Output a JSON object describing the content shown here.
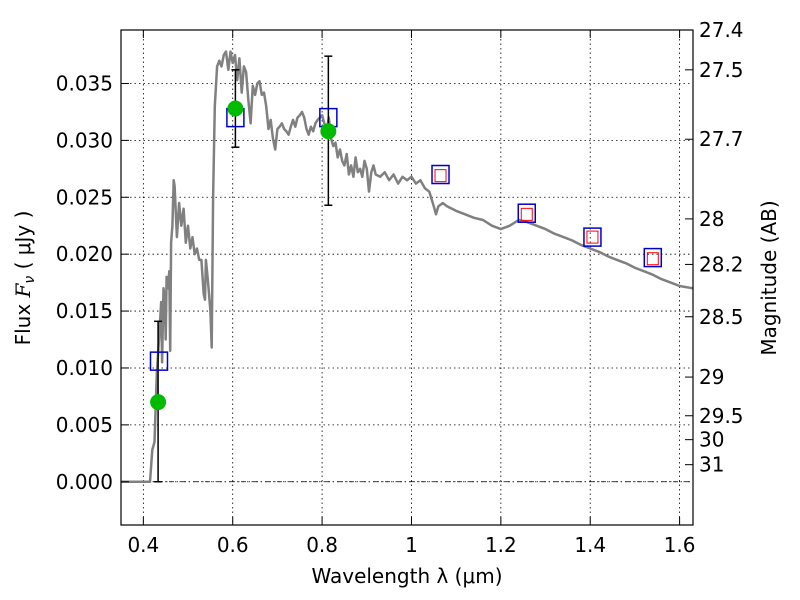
{
  "chart_data": {
    "type": "line",
    "xlabel": "Wavelength  λ (μm)",
    "ylabel": "Flux  F_ν  ( μJy )",
    "ylabel_parts": {
      "prefix": "Flux  ",
      "symbol": "F",
      "subscript": "ν",
      "suffix": "  ( μJy )"
    },
    "y2label": "Magnitude (AB)",
    "xlim": [
      0.35,
      1.63
    ],
    "ylim": [
      -0.0038,
      0.0397
    ],
    "grid": true,
    "x_ticks": [
      {
        "value": 0.4,
        "label": "0.4"
      },
      {
        "value": 0.6,
        "label": "0.6"
      },
      {
        "value": 0.8,
        "label": "0.8"
      },
      {
        "value": 1.0,
        "label": "1"
      },
      {
        "value": 1.2,
        "label": "1.2"
      },
      {
        "value": 1.4,
        "label": "1.4"
      },
      {
        "value": 1.6,
        "label": "1.6"
      }
    ],
    "y_ticks": [
      {
        "value": 0.0,
        "label": "0.000"
      },
      {
        "value": 0.005,
        "label": "0.005"
      },
      {
        "value": 0.01,
        "label": "0.010"
      },
      {
        "value": 0.015,
        "label": "0.015"
      },
      {
        "value": 0.02,
        "label": "0.020"
      },
      {
        "value": 0.025,
        "label": "0.025"
      },
      {
        "value": 0.03,
        "label": "0.030"
      },
      {
        "value": 0.035,
        "label": "0.035"
      }
    ],
    "y2_ticks": [
      {
        "flux": 0.0397,
        "label": "27.4"
      },
      {
        "flux": 0.0362,
        "label": "27.5"
      },
      {
        "flux": 0.0301,
        "label": "27.7"
      },
      {
        "flux": 0.0231,
        "label": "28"
      },
      {
        "flux": 0.0191,
        "label": "28.2"
      },
      {
        "flux": 0.0145,
        "label": "28.5"
      },
      {
        "flux": 0.0092,
        "label": "29"
      },
      {
        "flux": 0.0058,
        "label": "29.5"
      },
      {
        "flux": 0.0037,
        "label": "30"
      },
      {
        "flux": 0.0015,
        "label": "31"
      }
    ],
    "series": [
      {
        "color": "#808080",
        "points": [
          [
            0.35,
            0.0
          ],
          [
            0.41,
            0.0
          ],
          [
            0.415,
            0.0
          ],
          [
            0.42,
            0.0028
          ],
          [
            0.425,
            0.0035
          ],
          [
            0.43,
            0.0095
          ],
          [
            0.435,
            0.0125
          ],
          [
            0.44,
            0.0158
          ],
          [
            0.442,
            0.0105
          ],
          [
            0.445,
            0.017
          ],
          [
            0.448,
            0.016
          ],
          [
            0.45,
            0.0125
          ],
          [
            0.452,
            0.018
          ],
          [
            0.455,
            0.017
          ],
          [
            0.458,
            0.0185
          ],
          [
            0.46,
            0.0115
          ],
          [
            0.462,
            0.021
          ],
          [
            0.465,
            0.0225
          ],
          [
            0.468,
            0.0265
          ],
          [
            0.47,
            0.026
          ],
          [
            0.475,
            0.0215
          ],
          [
            0.48,
            0.0245
          ],
          [
            0.485,
            0.0225
          ],
          [
            0.49,
            0.024
          ],
          [
            0.495,
            0.021
          ],
          [
            0.5,
            0.0225
          ],
          [
            0.505,
            0.0205
          ],
          [
            0.51,
            0.0215
          ],
          [
            0.515,
            0.02
          ],
          [
            0.52,
            0.0205
          ],
          [
            0.525,
            0.0195
          ],
          [
            0.53,
            0.0195
          ],
          [
            0.535,
            0.0165
          ],
          [
            0.538,
            0.016
          ],
          [
            0.54,
            0.0195
          ],
          [
            0.545,
            0.0175
          ],
          [
            0.55,
            0.015
          ],
          [
            0.553,
            0.0118
          ],
          [
            0.556,
            0.025
          ],
          [
            0.56,
            0.033
          ],
          [
            0.565,
            0.0365
          ],
          [
            0.57,
            0.037
          ],
          [
            0.575,
            0.0365
          ],
          [
            0.58,
            0.0375
          ],
          [
            0.585,
            0.0378
          ],
          [
            0.59,
            0.0362
          ],
          [
            0.595,
            0.0378
          ],
          [
            0.6,
            0.0368
          ],
          [
            0.605,
            0.0375
          ],
          [
            0.61,
            0.0353
          ],
          [
            0.615,
            0.0372
          ],
          [
            0.62,
            0.0342
          ],
          [
            0.625,
            0.0365
          ],
          [
            0.63,
            0.036
          ],
          [
            0.635,
            0.0335
          ],
          [
            0.64,
            0.0315
          ],
          [
            0.645,
            0.0348
          ],
          [
            0.65,
            0.034
          ],
          [
            0.655,
            0.035
          ],
          [
            0.66,
            0.0352
          ],
          [
            0.665,
            0.034
          ],
          [
            0.67,
            0.0342
          ],
          [
            0.675,
            0.033
          ],
          [
            0.68,
            0.031
          ],
          [
            0.685,
            0.0318
          ],
          [
            0.69,
            0.0302
          ],
          [
            0.695,
            0.0292
          ],
          [
            0.7,
            0.031
          ],
          [
            0.705,
            0.0312
          ],
          [
            0.71,
            0.0315
          ],
          [
            0.715,
            0.031
          ],
          [
            0.72,
            0.0308
          ],
          [
            0.725,
            0.0305
          ],
          [
            0.73,
            0.0312
          ],
          [
            0.735,
            0.0318
          ],
          [
            0.74,
            0.0312
          ],
          [
            0.745,
            0.032
          ],
          [
            0.75,
            0.0322
          ],
          [
            0.755,
            0.0325
          ],
          [
            0.76,
            0.032
          ],
          [
            0.765,
            0.031
          ],
          [
            0.77,
            0.0305
          ],
          [
            0.775,
            0.0312
          ],
          [
            0.78,
            0.0308
          ],
          [
            0.785,
            0.0315
          ],
          [
            0.79,
            0.0318
          ],
          [
            0.795,
            0.032
          ],
          [
            0.8,
            0.0322
          ],
          [
            0.805,
            0.0315
          ],
          [
            0.81,
            0.0308
          ],
          [
            0.815,
            0.032
          ],
          [
            0.82,
            0.0302
          ],
          [
            0.825,
            0.0295
          ],
          [
            0.83,
            0.0298
          ],
          [
            0.835,
            0.0285
          ],
          [
            0.84,
            0.0292
          ],
          [
            0.845,
            0.0282
          ],
          [
            0.85,
            0.0278
          ],
          [
            0.855,
            0.0288
          ],
          [
            0.86,
            0.027
          ],
          [
            0.865,
            0.0278
          ],
          [
            0.87,
            0.0268
          ],
          [
            0.875,
            0.0285
          ],
          [
            0.88,
            0.0272
          ],
          [
            0.885,
            0.0275
          ],
          [
            0.89,
            0.0268
          ],
          [
            0.895,
            0.0282
          ],
          [
            0.9,
            0.0275
          ],
          [
            0.905,
            0.0255
          ],
          [
            0.91,
            0.0272
          ],
          [
            0.915,
            0.0278
          ],
          [
            0.92,
            0.027
          ],
          [
            0.93,
            0.0268
          ],
          [
            0.94,
            0.0272
          ],
          [
            0.95,
            0.0265
          ],
          [
            0.96,
            0.027
          ],
          [
            0.97,
            0.0262
          ],
          [
            0.98,
            0.0268
          ],
          [
            0.99,
            0.0265
          ],
          [
            1.0,
            0.0268
          ],
          [
            1.01,
            0.0262
          ],
          [
            1.02,
            0.0265
          ],
          [
            1.03,
            0.0258
          ],
          [
            1.04,
            0.0255
          ],
          [
            1.05,
            0.0242
          ],
          [
            1.055,
            0.0235
          ],
          [
            1.06,
            0.0242
          ],
          [
            1.07,
            0.0245
          ],
          [
            1.08,
            0.0242
          ],
          [
            1.1,
            0.0238
          ],
          [
            1.12,
            0.0235
          ],
          [
            1.14,
            0.0232
          ],
          [
            1.16,
            0.023
          ],
          [
            1.18,
            0.0225
          ],
          [
            1.2,
            0.0222
          ],
          [
            1.22,
            0.0225
          ],
          [
            1.24,
            0.023
          ],
          [
            1.26,
            0.0228
          ],
          [
            1.28,
            0.0225
          ],
          [
            1.3,
            0.0222
          ],
          [
            1.32,
            0.0218
          ],
          [
            1.34,
            0.0215
          ],
          [
            1.36,
            0.0212
          ],
          [
            1.38,
            0.0208
          ],
          [
            1.4,
            0.0205
          ],
          [
            1.42,
            0.0202
          ],
          [
            1.44,
            0.0198
          ],
          [
            1.46,
            0.0195
          ],
          [
            1.48,
            0.0192
          ],
          [
            1.5,
            0.0188
          ],
          [
            1.52,
            0.0185
          ],
          [
            1.54,
            0.0182
          ],
          [
            1.56,
            0.0178
          ],
          [
            1.58,
            0.0175
          ],
          [
            1.6,
            0.0172
          ],
          [
            1.63,
            0.017
          ]
        ]
      },
      {
        "type": "scatter",
        "marker": "circle",
        "color": "#00bb00",
        "points": [
          {
            "x": 0.433,
            "y": 0.007,
            "err_low": 0.0,
            "err_high": 0.0141
          },
          {
            "x": 0.606,
            "y": 0.0328,
            "err_low": 0.0294,
            "err_high": 0.0362
          },
          {
            "x": 0.814,
            "y": 0.0308,
            "err_low": 0.0243,
            "err_high": 0.0374
          }
        ]
      },
      {
        "type": "scatter",
        "marker": "square",
        "color": "#0000cc",
        "points": [
          {
            "x": 0.435,
            "y": 0.0106
          },
          {
            "x": 0.606,
            "y": 0.032
          },
          {
            "x": 0.814,
            "y": 0.032
          },
          {
            "x": 1.065,
            "y": 0.027
          },
          {
            "x": 1.258,
            "y": 0.0236
          },
          {
            "x": 1.405,
            "y": 0.0215
          },
          {
            "x": 1.54,
            "y": 0.0197
          }
        ]
      },
      {
        "type": "scatter",
        "marker": "small-square",
        "color": "#ff0000",
        "points": [
          {
            "x": 1.065,
            "y": 0.0269
          },
          {
            "x": 1.258,
            "y": 0.0235
          },
          {
            "x": 1.405,
            "y": 0.0215
          },
          {
            "x": 1.54,
            "y": 0.0196
          }
        ]
      }
    ]
  }
}
